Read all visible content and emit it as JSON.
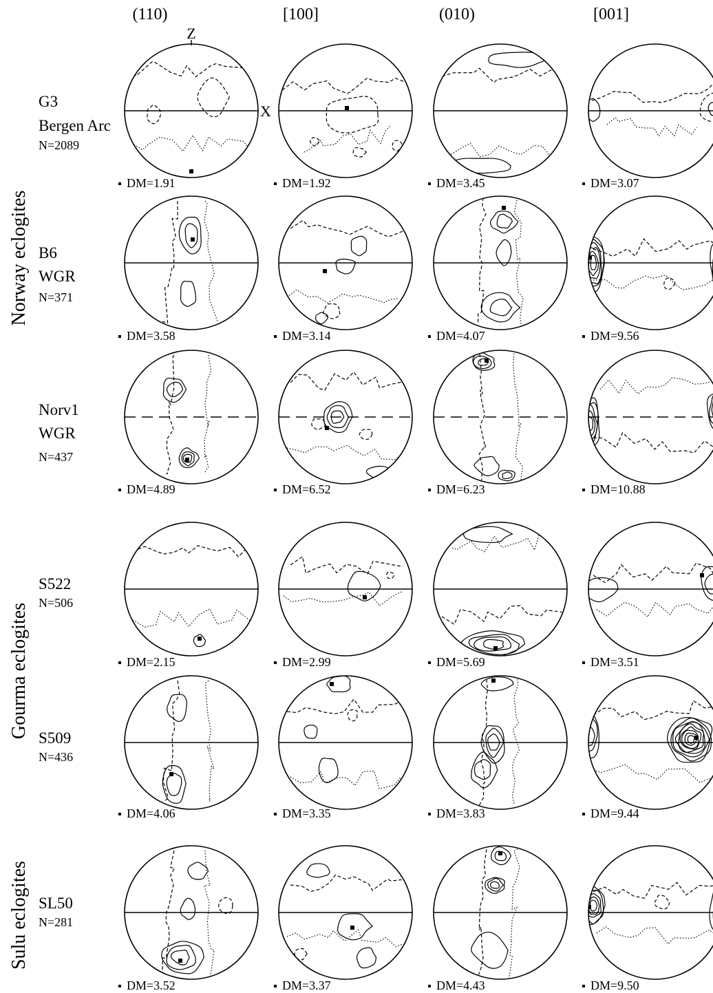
{
  "columns": [
    "(110)",
    "[100]",
    "(010)",
    "[001]"
  ],
  "axis_labels": {
    "z": "Z",
    "x": "X"
  },
  "groups": [
    {
      "label": "Norway eclogites",
      "rows": [
        0,
        1,
        2
      ]
    },
    {
      "label": "Gourma eclogites",
      "rows": [
        3,
        4
      ]
    },
    {
      "label": "Sulu eclogites",
      "rows": [
        5
      ]
    }
  ],
  "samples": [
    {
      "name_lines": [
        "G3",
        "Bergen Arc"
      ],
      "n": "N=2089",
      "dm": [
        "DM=1.91",
        "DM=1.92",
        "DM=3.45",
        "DM=3.07"
      ]
    },
    {
      "name_lines": [
        "B6",
        "WGR"
      ],
      "n": "N=371",
      "dm": [
        "DM=3.58",
        "DM=3.14",
        "DM=4.07",
        "DM=9.56"
      ]
    },
    {
      "name_lines": [
        "Norv1",
        "WGR"
      ],
      "n": "N=437",
      "dm": [
        "DM=4.89",
        "DM=6.52",
        "DM=6.23",
        "DM=10.88"
      ]
    },
    {
      "name_lines": [
        "S522"
      ],
      "n": "N=506",
      "dm": [
        "DM=2.15",
        "DM=2.99",
        "DM=5.69",
        "DM=3.51"
      ]
    },
    {
      "name_lines": [
        "S509"
      ],
      "n": "N=436",
      "dm": [
        "DM=4.06",
        "DM=3.35",
        "DM=3.83",
        "DM=9.44"
      ]
    },
    {
      "name_lines": [
        "SL50"
      ],
      "n": "N=281",
      "dm": [
        "DM=3.52",
        "DM=3.37",
        "DM=4.43",
        "DM=9.50"
      ]
    }
  ]
}
